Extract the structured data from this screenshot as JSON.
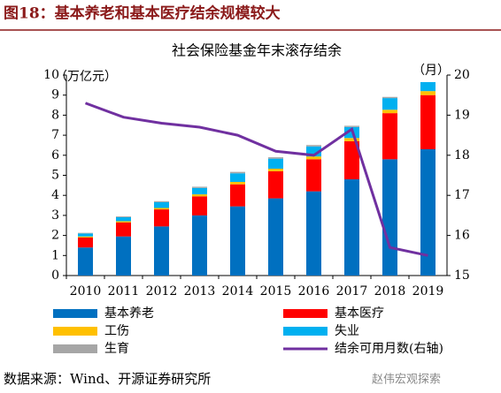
{
  "header": {
    "title": "图18：基本养老和基本医疗结余规模较大"
  },
  "chart_data": {
    "type": "bar",
    "stacked": true,
    "title": "社会保险基金年末滚存结余",
    "y_label": "（万亿元）",
    "y2_label": "（月）",
    "categories": [
      "2010",
      "2011",
      "2012",
      "2013",
      "2014",
      "2015",
      "2016",
      "2017",
      "2018",
      "2019"
    ],
    "series": [
      {
        "name": "基本养老",
        "color": "#0070C0",
        "values": [
          1.4,
          1.95,
          2.45,
          3.0,
          3.45,
          3.85,
          4.2,
          4.8,
          5.8,
          6.3
        ]
      },
      {
        "name": "基本医疗",
        "color": "#FF0000",
        "values": [
          0.5,
          0.7,
          0.85,
          0.95,
          1.1,
          1.35,
          1.6,
          1.9,
          2.3,
          2.7
        ]
      },
      {
        "name": "工伤",
        "color": "#FFC000",
        "values": [
          0.05,
          0.06,
          0.07,
          0.1,
          0.12,
          0.13,
          0.14,
          0.16,
          0.17,
          0.2
        ]
      },
      {
        "name": "失业",
        "color": "#00B0F0",
        "values": [
          0.15,
          0.2,
          0.29,
          0.32,
          0.43,
          0.5,
          0.5,
          0.55,
          0.58,
          0.45
        ]
      },
      {
        "name": "生育",
        "color": "#A6A6A6",
        "values": [
          0.03,
          0.04,
          0.05,
          0.06,
          0.07,
          0.07,
          0.07,
          0.06,
          0.06,
          0.0
        ]
      },
      {
        "name": "结余可用月数(右轴)",
        "color": "#7030A0",
        "type": "line",
        "axis": "y2",
        "values": [
          19.3,
          18.95,
          18.8,
          18.7,
          18.5,
          18.1,
          18.0,
          18.65,
          15.7,
          15.5
        ]
      }
    ],
    "ylim": [
      0,
      10
    ],
    "yticks": [
      0,
      1,
      2,
      3,
      4,
      5,
      6,
      7,
      8,
      9,
      10
    ],
    "y2lim": [
      15,
      20
    ],
    "y2ticks": [
      15,
      16,
      17,
      18,
      19,
      20
    ],
    "grid": false,
    "legend": "bottom"
  },
  "footer": {
    "source": "数据来源：Wind、开源证券研究所",
    "watermark": "赵伟宏观探索"
  }
}
